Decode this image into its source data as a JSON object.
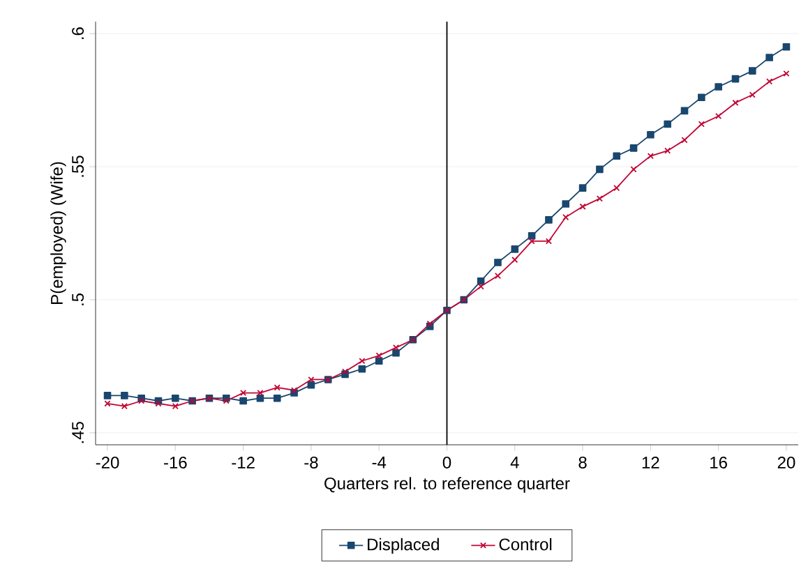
{
  "chart_data": {
    "type": "line",
    "xlabel": "Quarters rel. to reference quarter",
    "ylabel": "P(employed) (Wife)",
    "x": [
      -20,
      -19,
      -18,
      -17,
      -16,
      -15,
      -14,
      -13,
      -12,
      -11,
      -10,
      -9,
      -8,
      -7,
      -6,
      -5,
      -4,
      -3,
      -2,
      -1,
      0,
      1,
      2,
      3,
      4,
      5,
      6,
      7,
      8,
      9,
      10,
      11,
      12,
      13,
      14,
      15,
      16,
      17,
      18,
      19,
      20
    ],
    "series": [
      {
        "name": "Displaced",
        "color": "#1a476f",
        "marker": "square",
        "values": [
          0.464,
          0.464,
          0.463,
          0.462,
          0.463,
          0.462,
          0.463,
          0.463,
          0.462,
          0.463,
          0.463,
          0.465,
          0.468,
          0.47,
          0.472,
          0.474,
          0.477,
          0.48,
          0.485,
          0.49,
          0.496,
          0.5,
          0.507,
          0.514,
          0.519,
          0.524,
          0.53,
          0.536,
          0.542,
          0.549,
          0.554,
          0.557,
          0.562,
          0.566,
          0.571,
          0.576,
          0.58,
          0.583,
          0.586,
          0.591,
          0.595
        ]
      },
      {
        "name": "Control",
        "color": "#c10534",
        "marker": "cross",
        "values": [
          0.461,
          0.46,
          0.462,
          0.461,
          0.46,
          0.462,
          0.463,
          0.462,
          0.465,
          0.465,
          0.467,
          0.466,
          0.47,
          0.47,
          0.473,
          0.477,
          0.479,
          0.482,
          0.485,
          0.491,
          0.496,
          0.5,
          0.505,
          0.509,
          0.515,
          0.522,
          0.522,
          0.531,
          0.535,
          0.538,
          0.542,
          0.549,
          0.554,
          0.556,
          0.56,
          0.566,
          0.569,
          0.574,
          0.577,
          0.582,
          0.585
        ]
      }
    ],
    "xlim": [
      -20.7,
      20.7
    ],
    "ylim": [
      0.4455,
      0.6045
    ],
    "xticks": [
      -20,
      -16,
      -12,
      -8,
      -4,
      0,
      4,
      8,
      12,
      16,
      20
    ],
    "yticks": [
      {
        "value": 0.45,
        "label": ".45"
      },
      {
        "value": 0.5,
        "label": ".5"
      },
      {
        "value": 0.55,
        "label": ".55"
      },
      {
        "value": 0.6,
        "label": ".6"
      }
    ],
    "ref_lines": [
      {
        "axis": "x",
        "value": 0,
        "color": "#000000"
      }
    ],
    "grid": "y",
    "legend": "bottom"
  }
}
